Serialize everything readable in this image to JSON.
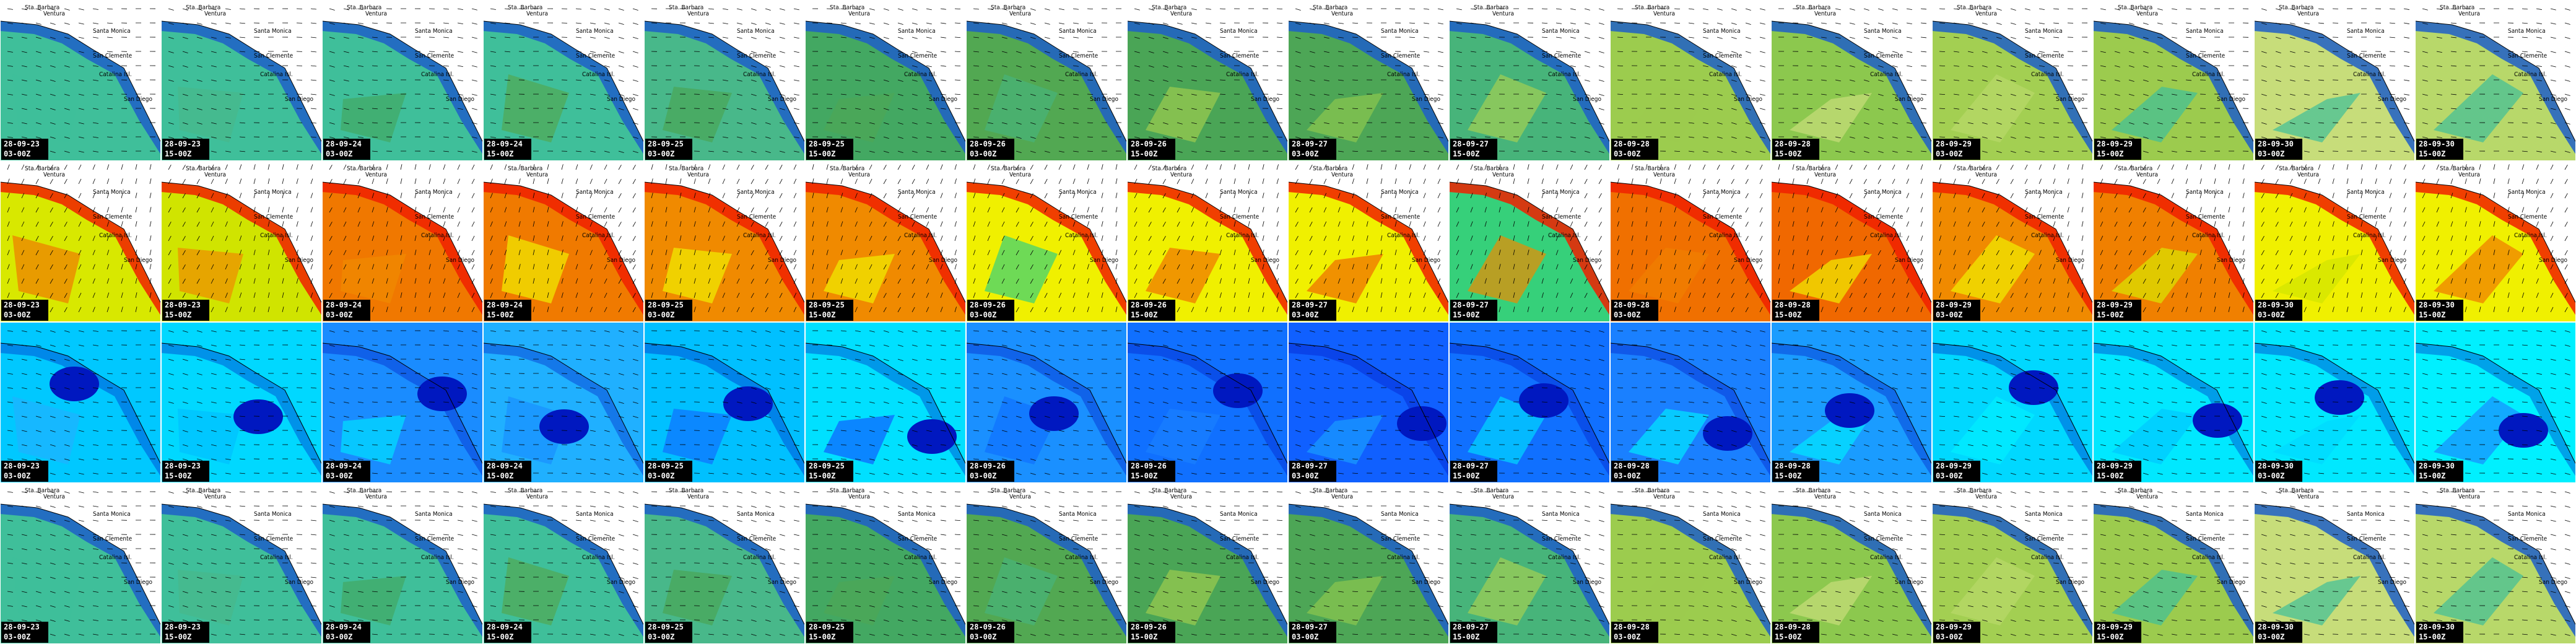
{
  "places": [
    "Sta. Barbara",
    "Ventura",
    "Santa Monica",
    "San Clemente",
    "Catalina Isl.",
    "San Diego"
  ],
  "columns": [
    {
      "date": "28-09-23",
      "time": "03-00Z"
    },
    {
      "date": "28-09-23",
      "time": "15-00Z"
    },
    {
      "date": "28-09-24",
      "time": "03-00Z"
    },
    {
      "date": "28-09-24",
      "time": "15-00Z"
    },
    {
      "date": "28-09-25",
      "time": "03-00Z"
    },
    {
      "date": "28-09-25",
      "time": "15-00Z"
    },
    {
      "date": "28-09-26",
      "time": "03-00Z"
    },
    {
      "date": "28-09-26",
      "time": "15-00Z"
    },
    {
      "date": "28-09-27",
      "time": "03-00Z"
    },
    {
      "date": "28-09-27",
      "time": "15-00Z"
    },
    {
      "date": "28-09-28",
      "time": "03-00Z"
    },
    {
      "date": "28-09-28",
      "time": "15-00Z"
    },
    {
      "date": "28-09-29",
      "time": "03-00Z"
    },
    {
      "date": "28-09-29",
      "time": "15-00Z"
    },
    {
      "date": "28-09-30",
      "time": "03-00Z"
    },
    {
      "date": "28-09-30",
      "time": "15-00Z"
    }
  ]
}
